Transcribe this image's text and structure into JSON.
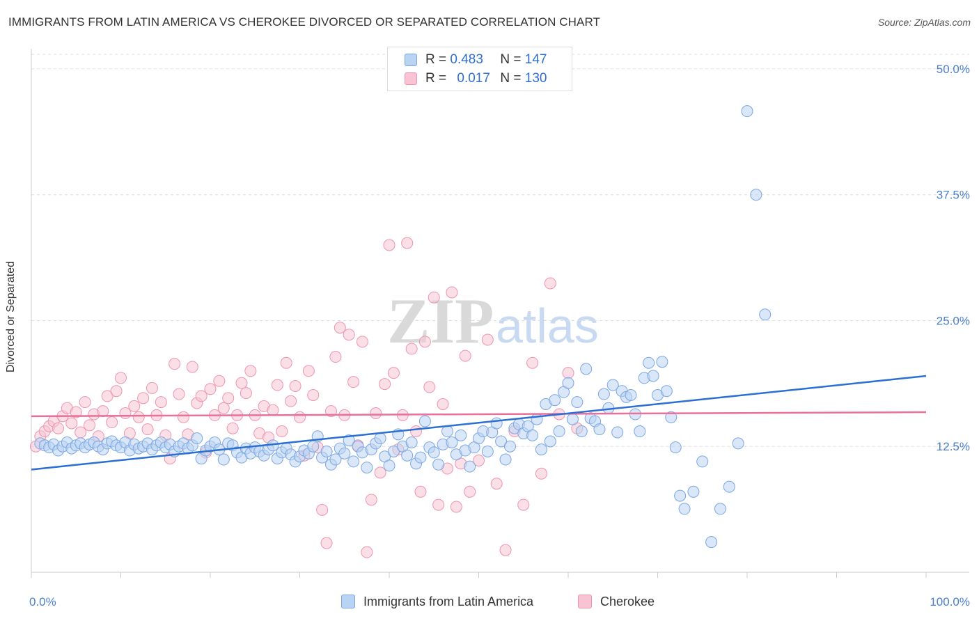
{
  "title": "IMMIGRANTS FROM LATIN AMERICA VS CHEROKEE DIVORCED OR SEPARATED CORRELATION CHART",
  "source": "Source: ZipAtlas.com",
  "watermark": {
    "zip": "ZIP",
    "atlas": "atlas"
  },
  "legend": {
    "r_label": "R =",
    "n_label": "N =",
    "rows": [
      {
        "r": "0.483",
        "n": "147",
        "color": "#a8c8f0"
      },
      {
        "r": "0.017",
        "n": "130",
        "color": "#f5b8cb"
      }
    ]
  },
  "colors": {
    "blue_fill": "#b9d3f3",
    "blue_stroke": "#7aa6e3",
    "blue_line": "#2a6fd1",
    "pink_fill": "#f8c4d4",
    "pink_stroke": "#ee93b0",
    "pink_line": "#e8709a",
    "tick_text": "#4a7fd0",
    "grid": "#dddddd"
  },
  "chart_data": {
    "type": "scatter",
    "xlabel": "",
    "ylabel": "Divorced or Separated",
    "xlim": [
      0,
      100
    ],
    "ylim": [
      0,
      52
    ],
    "x_tick_labels": [
      {
        "value": 0,
        "label": "0.0%"
      },
      {
        "value": 100,
        "label": "100.0%"
      }
    ],
    "y_ticks": [
      {
        "value": 12.5,
        "label": "12.5%"
      },
      {
        "value": 25.0,
        "label": "25.0%"
      },
      {
        "value": 37.5,
        "label": "37.5%"
      },
      {
        "value": 50.0,
        "label": "50.0%"
      }
    ],
    "grid": "horizontal dashed",
    "series": [
      {
        "name": "Immigrants from Latin America",
        "color": "#7aa6e3",
        "trend": {
          "x": [
            0,
            100
          ],
          "y": [
            10.2,
            19.5
          ]
        },
        "points": [
          [
            1,
            12.8
          ],
          [
            1.5,
            12.6
          ],
          [
            2,
            12.4
          ],
          [
            2.5,
            12.7
          ],
          [
            3,
            12.1
          ],
          [
            3.5,
            12.5
          ],
          [
            4,
            12.9
          ],
          [
            4.5,
            12.3
          ],
          [
            5,
            12.6
          ],
          [
            5.5,
            12.8
          ],
          [
            6,
            12.4
          ],
          [
            6.5,
            12.7
          ],
          [
            7,
            12.9
          ],
          [
            7.5,
            12.5
          ],
          [
            8,
            12.2
          ],
          [
            8.5,
            12.8
          ],
          [
            9,
            13.0
          ],
          [
            9.5,
            12.6
          ],
          [
            10,
            12.4
          ],
          [
            10.5,
            12.9
          ],
          [
            11,
            12.1
          ],
          [
            11.5,
            12.7
          ],
          [
            12,
            12.3
          ],
          [
            12.5,
            12.5
          ],
          [
            13,
            12.8
          ],
          [
            13.5,
            12.2
          ],
          [
            14,
            12.6
          ],
          [
            14.5,
            12.9
          ],
          [
            15,
            12.4
          ],
          [
            15.5,
            12.7
          ],
          [
            16,
            12.0
          ],
          [
            16.5,
            12.5
          ],
          [
            17,
            12.8
          ],
          [
            17.5,
            12.3
          ],
          [
            18,
            12.6
          ],
          [
            18.5,
            13.3
          ],
          [
            19,
            11.3
          ],
          [
            19.5,
            12.1
          ],
          [
            20,
            12.5
          ],
          [
            20.5,
            12.9
          ],
          [
            21,
            12.2
          ],
          [
            21.5,
            11.2
          ],
          [
            22,
            12.8
          ],
          [
            22.5,
            12.6
          ],
          [
            23,
            11.9
          ],
          [
            23.5,
            11.4
          ],
          [
            24,
            12.3
          ],
          [
            24.5,
            11.8
          ],
          [
            25,
            12.4
          ],
          [
            25.5,
            12.0
          ],
          [
            26,
            11.6
          ],
          [
            26.5,
            12.2
          ],
          [
            27,
            12.6
          ],
          [
            27.5,
            11.3
          ],
          [
            28,
            11.9
          ],
          [
            28.5,
            12.3
          ],
          [
            29,
            11.7
          ],
          [
            29.5,
            11.0
          ],
          [
            30,
            11.5
          ],
          [
            30.5,
            12.1
          ],
          [
            31,
            11.8
          ],
          [
            31.5,
            12.5
          ],
          [
            32,
            13.5
          ],
          [
            32.5,
            11.4
          ],
          [
            33,
            12.0
          ],
          [
            33.5,
            10.7
          ],
          [
            34,
            11.2
          ],
          [
            34.5,
            12.3
          ],
          [
            35,
            11.8
          ],
          [
            35.5,
            13.1
          ],
          [
            36,
            11.0
          ],
          [
            36.5,
            12.5
          ],
          [
            37,
            11.9
          ],
          [
            37.5,
            10.4
          ],
          [
            38,
            12.2
          ],
          [
            38.5,
            12.8
          ],
          [
            39,
            13.3
          ],
          [
            39.5,
            11.5
          ],
          [
            40,
            10.6
          ],
          [
            40.5,
            12.0
          ],
          [
            41,
            13.7
          ],
          [
            41.5,
            12.5
          ],
          [
            42,
            11.6
          ],
          [
            42.5,
            12.9
          ],
          [
            43,
            10.8
          ],
          [
            43.5,
            11.4
          ],
          [
            44,
            15.0
          ],
          [
            44.5,
            12.4
          ],
          [
            45,
            11.9
          ],
          [
            45.5,
            10.7
          ],
          [
            46,
            12.7
          ],
          [
            46.5,
            14.0
          ],
          [
            47,
            12.9
          ],
          [
            47.5,
            11.7
          ],
          [
            48,
            13.6
          ],
          [
            48.5,
            12.1
          ],
          [
            49,
            10.5
          ],
          [
            49.5,
            12.4
          ],
          [
            50,
            13.3
          ],
          [
            50.5,
            14.0
          ],
          [
            51,
            12.0
          ],
          [
            51.5,
            13.9
          ],
          [
            52,
            14.8
          ],
          [
            52.5,
            13.0
          ],
          [
            53,
            11.2
          ],
          [
            53.5,
            12.5
          ],
          [
            54,
            14.3
          ],
          [
            54.5,
            14.7
          ],
          [
            55,
            13.8
          ],
          [
            55.5,
            14.5
          ],
          [
            56,
            13.6
          ],
          [
            56.5,
            15.2
          ],
          [
            57,
            12.2
          ],
          [
            57.5,
            16.7
          ],
          [
            58,
            13.0
          ],
          [
            58.5,
            17.1
          ],
          [
            59,
            14.0
          ],
          [
            59.5,
            17.9
          ],
          [
            60,
            18.8
          ],
          [
            60.5,
            15.2
          ],
          [
            61,
            16.9
          ],
          [
            61.5,
            14.0
          ],
          [
            62,
            20.2
          ],
          [
            62.5,
            15.3
          ],
          [
            63,
            15.0
          ],
          [
            63.5,
            14.2
          ],
          [
            64,
            17.7
          ],
          [
            64.5,
            16.3
          ],
          [
            65,
            18.6
          ],
          [
            65.5,
            13.9
          ],
          [
            66,
            18.0
          ],
          [
            66.5,
            17.4
          ],
          [
            67,
            17.6
          ],
          [
            67.5,
            15.7
          ],
          [
            68,
            14.0
          ],
          [
            68.5,
            19.3
          ],
          [
            69,
            20.8
          ],
          [
            69.5,
            19.5
          ],
          [
            70,
            17.6
          ],
          [
            70.5,
            20.9
          ],
          [
            71,
            18.0
          ],
          [
            71.5,
            15.4
          ],
          [
            72,
            12.4
          ],
          [
            72.5,
            7.6
          ],
          [
            73,
            6.3
          ],
          [
            74,
            8.0
          ],
          [
            75,
            11.0
          ],
          [
            76,
            3.0
          ],
          [
            77,
            6.3
          ],
          [
            78,
            8.5
          ],
          [
            79,
            12.8
          ],
          [
            80,
            45.8
          ],
          [
            81,
            37.5
          ],
          [
            82,
            25.6
          ]
        ]
      },
      {
        "name": "Cherokee",
        "color": "#ee93b0",
        "trend": {
          "x": [
            0,
            100
          ],
          "y": [
            15.5,
            15.9
          ]
        },
        "points": [
          [
            0.5,
            12.5
          ],
          [
            1,
            13.5
          ],
          [
            1.5,
            14.0
          ],
          [
            2,
            14.5
          ],
          [
            2.5,
            15.0
          ],
          [
            3,
            14.3
          ],
          [
            3.5,
            15.5
          ],
          [
            4,
            16.3
          ],
          [
            4.5,
            14.8
          ],
          [
            5,
            15.9
          ],
          [
            5.5,
            13.9
          ],
          [
            6,
            16.9
          ],
          [
            6.5,
            14.6
          ],
          [
            7,
            15.7
          ],
          [
            7.5,
            13.5
          ],
          [
            8,
            16.0
          ],
          [
            8.5,
            17.5
          ],
          [
            9,
            14.9
          ],
          [
            9.5,
            18.0
          ],
          [
            10,
            19.3
          ],
          [
            10.5,
            15.8
          ],
          [
            11,
            13.8
          ],
          [
            11.5,
            16.5
          ],
          [
            12,
            15.4
          ],
          [
            12.5,
            17.3
          ],
          [
            13,
            14.2
          ],
          [
            13.5,
            18.3
          ],
          [
            14,
            15.6
          ],
          [
            14.5,
            16.9
          ],
          [
            15,
            13.6
          ],
          [
            15.5,
            11.3
          ],
          [
            16,
            20.7
          ],
          [
            16.5,
            17.7
          ],
          [
            17,
            15.4
          ],
          [
            17.5,
            13.7
          ],
          [
            18,
            20.4
          ],
          [
            18.5,
            16.8
          ],
          [
            19,
            17.5
          ],
          [
            19.5,
            11.9
          ],
          [
            20,
            18.2
          ],
          [
            20.5,
            15.6
          ],
          [
            21,
            19.0
          ],
          [
            21.5,
            16.3
          ],
          [
            22,
            17.3
          ],
          [
            22.5,
            14.3
          ],
          [
            23,
            15.6
          ],
          [
            23.5,
            18.8
          ],
          [
            24,
            17.8
          ],
          [
            24.5,
            20.0
          ],
          [
            25,
            15.6
          ],
          [
            25.5,
            13.8
          ],
          [
            26,
            16.5
          ],
          [
            26.5,
            13.4
          ],
          [
            27,
            16.1
          ],
          [
            27.5,
            18.6
          ],
          [
            28,
            14.0
          ],
          [
            28.5,
            20.8
          ],
          [
            29,
            17.0
          ],
          [
            29.5,
            18.5
          ],
          [
            30,
            15.4
          ],
          [
            30.5,
            11.6
          ],
          [
            31,
            20.0
          ],
          [
            31.5,
            17.6
          ],
          [
            32,
            12.4
          ],
          [
            32.5,
            6.2
          ],
          [
            33,
            2.9
          ],
          [
            33.5,
            16.0
          ],
          [
            34,
            21.4
          ],
          [
            34.5,
            24.3
          ],
          [
            35,
            15.6
          ],
          [
            35.5,
            23.6
          ],
          [
            36,
            18.9
          ],
          [
            36.5,
            12.6
          ],
          [
            37,
            22.9
          ],
          [
            37.5,
            2.0
          ],
          [
            38,
            7.2
          ],
          [
            38.5,
            15.8
          ],
          [
            39,
            9.9
          ],
          [
            39.5,
            18.7
          ],
          [
            40,
            32.5
          ],
          [
            40.5,
            19.8
          ],
          [
            41,
            12.2
          ],
          [
            41.5,
            15.6
          ],
          [
            42,
            32.7
          ],
          [
            42.5,
            22.2
          ],
          [
            43,
            14.0
          ],
          [
            43.5,
            8.0
          ],
          [
            44,
            22.9
          ],
          [
            44.5,
            18.4
          ],
          [
            45,
            27.3
          ],
          [
            45.5,
            6.7
          ],
          [
            46,
            16.7
          ],
          [
            46.5,
            10.3
          ],
          [
            47,
            27.8
          ],
          [
            47.5,
            6.5
          ],
          [
            48,
            10.8
          ],
          [
            48.5,
            21.5
          ],
          [
            49,
            8.0
          ],
          [
            50,
            11.1
          ],
          [
            51,
            23.1
          ],
          [
            52,
            8.8
          ],
          [
            53,
            2.2
          ],
          [
            54,
            14.0
          ],
          [
            55,
            6.7
          ],
          [
            56,
            20.8
          ],
          [
            57,
            9.8
          ],
          [
            58,
            28.7
          ],
          [
            59,
            15.7
          ],
          [
            60,
            19.8
          ],
          [
            61,
            14.3
          ]
        ]
      }
    ]
  },
  "bottom_legend": [
    {
      "label": "Immigrants from Latin America"
    },
    {
      "label": "Cherokee"
    }
  ]
}
